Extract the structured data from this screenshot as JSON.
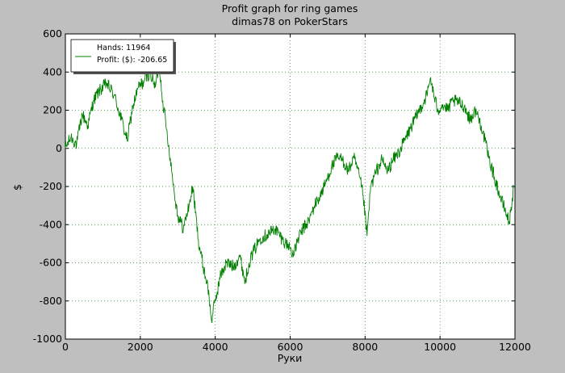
{
  "chart_data": {
    "type": "line",
    "title": "Profit graph for ring games",
    "subtitle": "dimas78 on PokerStars",
    "xlabel": "Руки",
    "ylabel": "$",
    "xlim": [
      0,
      12000
    ],
    "ylim": [
      -1000,
      600
    ],
    "xticks": [
      0,
      2000,
      4000,
      6000,
      8000,
      10000,
      12000
    ],
    "yticks": [
      -1000,
      -800,
      -600,
      -400,
      -200,
      0,
      200,
      400,
      600
    ],
    "grid": true,
    "legend_position": "top-left",
    "legend": {
      "line1": "Hands: 11964",
      "line2": "Profit: ($): -206.65"
    },
    "colors": {
      "series": "#008000",
      "background": "#bfbfbf",
      "plot_area": "#ffffff",
      "grid": "#2e8b2e"
    },
    "series": [
      {
        "x": [
          0,
          150,
          300,
          450,
          600,
          750,
          900,
          1100,
          1300,
          1500,
          1650,
          1800,
          1950,
          2100,
          2250,
          2400,
          2500,
          2600,
          2700,
          2800,
          2900,
          3000,
          3150,
          3300,
          3400,
          3550,
          3700,
          3800,
          3900,
          4000,
          4150,
          4300,
          4500,
          4650,
          4800,
          4900,
          5000,
          5200,
          5400,
          5600,
          5800,
          6000,
          6100,
          6200,
          6350,
          6500,
          6650,
          6800,
          6950,
          7100,
          7250,
          7400,
          7550,
          7700,
          7850,
          7950,
          8050,
          8150,
          8300,
          8450,
          8600,
          8750,
          8900,
          9050,
          9200,
          9350,
          9500,
          9650,
          9750,
          9850,
          9950,
          10050,
          10200,
          10350,
          10500,
          10650,
          10800,
          10950,
          11100,
          11200,
          11300,
          11450,
          11600,
          11750,
          11850,
          11964
        ],
        "y": [
          0,
          60,
          20,
          180,
          120,
          250,
          300,
          340,
          280,
          150,
          40,
          220,
          320,
          350,
          400,
          320,
          440,
          250,
          100,
          -50,
          -220,
          -350,
          -420,
          -300,
          -200,
          -480,
          -640,
          -720,
          -900,
          -800,
          -660,
          -600,
          -620,
          -560,
          -700,
          -600,
          -550,
          -470,
          -450,
          -420,
          -480,
          -520,
          -560,
          -480,
          -420,
          -380,
          -300,
          -250,
          -180,
          -100,
          -50,
          -60,
          -120,
          -50,
          -150,
          -250,
          -460,
          -200,
          -120,
          -60,
          -120,
          -60,
          -20,
          40,
          100,
          160,
          220,
          280,
          370,
          260,
          200,
          230,
          200,
          250,
          240,
          220,
          150,
          200,
          120,
          40,
          -50,
          -150,
          -250,
          -330,
          -390,
          -206.65
        ]
      }
    ]
  }
}
